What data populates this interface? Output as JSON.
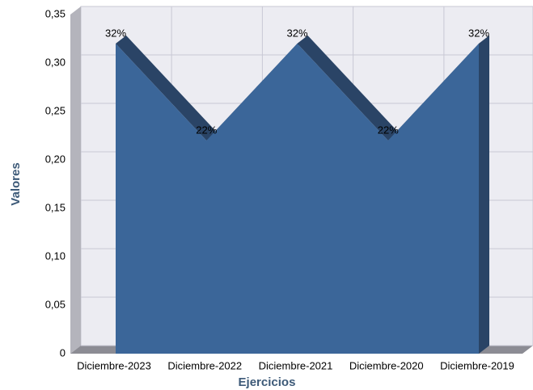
{
  "chart_data": {
    "type": "area",
    "x_label": "Ejercicios",
    "y_label": "Valores",
    "categories": [
      "Diciembre-2023",
      "Diciembre-2022",
      "Diciembre-2021",
      "Diciembre-2020",
      "Diciembre-2019"
    ],
    "values": [
      0.32,
      0.22,
      0.32,
      0.22,
      0.32
    ],
    "value_labels": [
      "32%",
      "22%",
      "32%",
      "22%",
      "32%"
    ],
    "color": "#3b6699",
    "ylim": [
      0,
      0.35
    ],
    "yticks": [
      0,
      {
        "value": 0.05,
        "label": "0,05"
      },
      {
        "value": 0.1,
        "label": "0,10"
      },
      {
        "value": 0.15,
        "label": "0,15"
      },
      {
        "value": 0.2,
        "label": "0,20"
      },
      {
        "value": 0.25,
        "label": "0,25"
      },
      {
        "value": 0.3,
        "label": "0,30"
      },
      {
        "value": 0.35,
        "label": "0,35"
      }
    ],
    "grid": true
  }
}
